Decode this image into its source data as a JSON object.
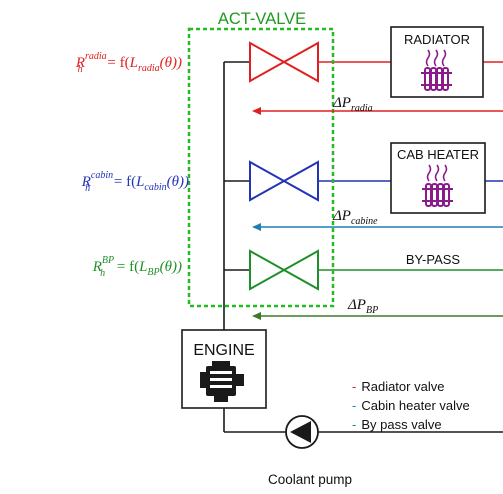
{
  "colors": {
    "radiator": "#e02020",
    "cabin": "#2233b5",
    "bypass": "#1f8f2a",
    "cabin_dp_arrow": "#1f7fb0",
    "bypass_dp_arrow": "#3d7a2a",
    "pipe": "#1a1a1a",
    "act_valve_box": "#22bb22",
    "heater_coil": "#8b1a8b"
  },
  "act_valve": {
    "label": "ACT-VALVE"
  },
  "equations": {
    "radiator": {
      "lhs_base": "R",
      "lhs_sub": "h",
      "lhs_sup": "radia",
      "equals": " = f(",
      "arg_base": "L",
      "arg_sub": "radia",
      "arg_tail": "(θ))"
    },
    "cabin": {
      "lhs_base": "R",
      "lhs_sub": "h",
      "lhs_sup": "cabin",
      "equals": " = f(",
      "arg_base": "L",
      "arg_sub": "cabin",
      "arg_tail": "(θ))"
    },
    "bypass": {
      "lhs_base": "R",
      "lhs_sub": "h",
      "lhs_sup": "BP",
      "equals": " = f(",
      "arg_base": "L",
      "arg_sub": "BP",
      "arg_tail": "(θ))"
    }
  },
  "components": {
    "radiator": "RADIATOR",
    "cab_heater": "CAB HEATER",
    "bypass": "BY-PASS",
    "engine": "ENGINE",
    "pump": "Coolant pump"
  },
  "pressure_drops": {
    "radiator": {
      "base": "ΔP",
      "sub": "radia"
    },
    "cabin": {
      "base": "ΔP",
      "sub": "cabine"
    },
    "bypass": {
      "base": "ΔP",
      "sub": "BP"
    }
  },
  "legend": [
    {
      "dash": "-",
      "text": "Radiator valve",
      "color": "#e02020"
    },
    {
      "dash": "-",
      "text": "Cabin heater valve",
      "color": "#1f7fb0"
    },
    {
      "dash": "-",
      "text": "By pass valve",
      "color": "#1f8f2a"
    }
  ]
}
